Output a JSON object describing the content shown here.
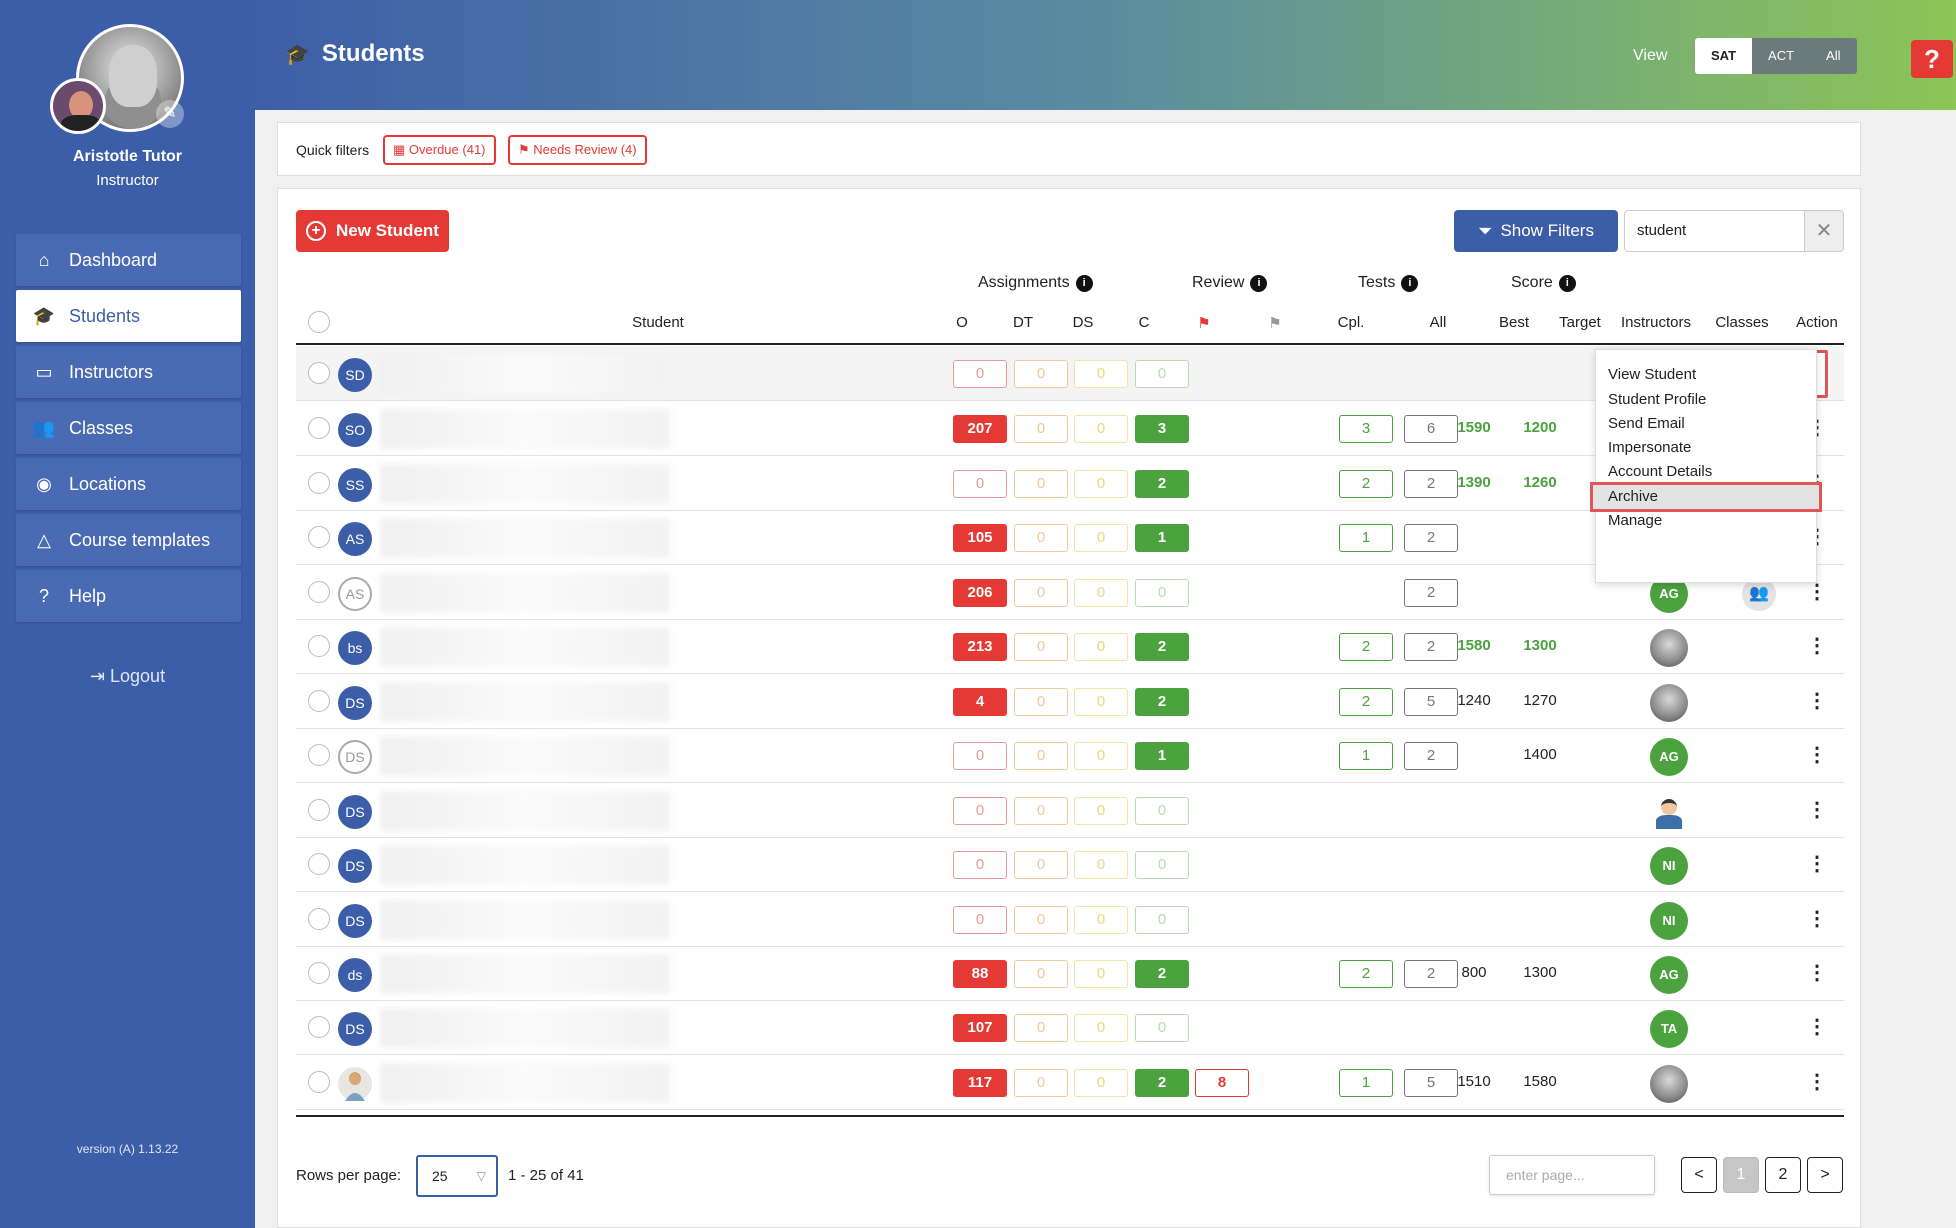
{
  "sidebar": {
    "user_name": "Aristotle Tutor",
    "user_role": "Instructor",
    "nav": [
      {
        "label": "Dashboard",
        "icon": "home-icon",
        "glyph": "⌂"
      },
      {
        "label": "Students",
        "icon": "graduation-cap-icon",
        "glyph": "🎓"
      },
      {
        "label": "Instructors",
        "icon": "chalkboard-icon",
        "glyph": "▭"
      },
      {
        "label": "Classes",
        "icon": "users-icon",
        "glyph": "👥"
      },
      {
        "label": "Locations",
        "icon": "map-pin-icon",
        "glyph": "◉"
      },
      {
        "label": "Course templates",
        "icon": "shapes-icon",
        "glyph": "△"
      },
      {
        "label": "Help",
        "icon": "question-circle-icon",
        "glyph": "?"
      }
    ],
    "active_index": 1,
    "logout_label": "Logout",
    "version": "version (A) 1.13.22"
  },
  "header": {
    "title": "Students",
    "view_label": "View",
    "view_options": [
      "SAT",
      "ACT",
      "All"
    ],
    "view_selected": "SAT",
    "help_label": "?"
  },
  "quick_filters": {
    "label": "Quick filters",
    "chips": [
      {
        "label": "Overdue (41)",
        "icon": "calendar-icon"
      },
      {
        "label": "Needs Review (4)",
        "icon": "flag-icon"
      }
    ]
  },
  "toolbar": {
    "new_student_label": "New Student",
    "show_filters_label": "Show Filters",
    "search_value": "student"
  },
  "table": {
    "group_headers": {
      "assignments": "Assignments",
      "review": "Review",
      "tests": "Tests",
      "score": "Score"
    },
    "columns": {
      "student": "Student",
      "o": "O",
      "dt": "DT",
      "ds": "DS",
      "c": "C",
      "cpl": "Cpl.",
      "all": "All",
      "best": "Best",
      "target": "Target",
      "instructors": "Instructors",
      "classes": "Classes",
      "action": "Action"
    },
    "rows": [
      {
        "initials": "SD",
        "avatar": "solid",
        "o": "0",
        "dt": "0",
        "ds": "0",
        "c": "0",
        "review": "",
        "cpl": "",
        "all": "",
        "best": "",
        "target": "",
        "best_green": false,
        "target_green": false,
        "instructor": "",
        "instructor_type": "",
        "classes": false
      },
      {
        "initials": "SO",
        "avatar": "solid",
        "o": "207",
        "dt": "0",
        "ds": "0",
        "c": "3",
        "review": "",
        "cpl": "3",
        "all": "6",
        "best": "1590",
        "target": "1200",
        "best_green": true,
        "target_green": true,
        "instructor": "",
        "instructor_type": "",
        "classes": false
      },
      {
        "initials": "SS",
        "avatar": "solid",
        "o": "0",
        "dt": "0",
        "ds": "0",
        "c": "2",
        "review": "",
        "cpl": "2",
        "all": "2",
        "best": "1390",
        "target": "1260",
        "best_green": true,
        "target_green": true,
        "instructor": "",
        "instructor_type": "",
        "classes": false
      },
      {
        "initials": "AS",
        "avatar": "solid",
        "o": "105",
        "dt": "0",
        "ds": "0",
        "c": "1",
        "review": "",
        "cpl": "1",
        "all": "2",
        "best": "",
        "target": "",
        "best_green": false,
        "target_green": false,
        "instructor": "",
        "instructor_type": "",
        "classes": false
      },
      {
        "initials": "AS",
        "avatar": "outline",
        "o": "206",
        "dt": "0",
        "ds": "0",
        "c": "0",
        "review": "",
        "cpl": "",
        "all": "2",
        "best": "",
        "target": "",
        "best_green": false,
        "target_green": false,
        "instructor": "AG",
        "instructor_type": "initials",
        "classes": true
      },
      {
        "initials": "bs",
        "avatar": "solid",
        "o": "213",
        "dt": "0",
        "ds": "0",
        "c": "2",
        "review": "",
        "cpl": "2",
        "all": "2",
        "best": "1580",
        "target": "1300",
        "best_green": true,
        "target_green": true,
        "instructor": "",
        "instructor_type": "photo",
        "classes": false
      },
      {
        "initials": "DS",
        "avatar": "solid",
        "o": "4",
        "dt": "0",
        "ds": "0",
        "c": "2",
        "review": "",
        "cpl": "2",
        "all": "5",
        "best": "1240",
        "target": "1270",
        "best_green": false,
        "target_green": false,
        "instructor": "",
        "instructor_type": "photo",
        "classes": false
      },
      {
        "initials": "DS",
        "avatar": "outline",
        "o": "0",
        "dt": "0",
        "ds": "0",
        "c": "1",
        "review": "",
        "cpl": "1",
        "all": "2",
        "best": "",
        "target": "1400",
        "best_green": false,
        "target_green": false,
        "instructor": "AG",
        "instructor_type": "initials",
        "classes": false
      },
      {
        "initials": "DS",
        "avatar": "solid",
        "o": "0",
        "dt": "0",
        "ds": "0",
        "c": "0",
        "review": "",
        "cpl": "",
        "all": "",
        "best": "",
        "target": "",
        "best_green": false,
        "target_green": false,
        "instructor": "",
        "instructor_type": "cartoon",
        "classes": false
      },
      {
        "initials": "DS",
        "avatar": "solid",
        "o": "0",
        "dt": "0",
        "ds": "0",
        "c": "0",
        "review": "",
        "cpl": "",
        "all": "",
        "best": "",
        "target": "",
        "best_green": false,
        "target_green": false,
        "instructor": "NI",
        "instructor_type": "initials",
        "classes": false
      },
      {
        "initials": "DS",
        "avatar": "solid",
        "o": "0",
        "dt": "0",
        "ds": "0",
        "c": "0",
        "review": "",
        "cpl": "",
        "all": "",
        "best": "",
        "target": "",
        "best_green": false,
        "target_green": false,
        "instructor": "NI",
        "instructor_type": "initials",
        "classes": false
      },
      {
        "initials": "ds",
        "avatar": "solid",
        "o": "88",
        "dt": "0",
        "ds": "0",
        "c": "2",
        "review": "",
        "cpl": "2",
        "all": "2",
        "best": "800",
        "target": "1300",
        "best_green": false,
        "target_green": false,
        "instructor": "AG",
        "instructor_type": "initials",
        "classes": false
      },
      {
        "initials": "DS",
        "avatar": "solid",
        "o": "107",
        "dt": "0",
        "ds": "0",
        "c": "0",
        "review": "",
        "cpl": "",
        "all": "",
        "best": "",
        "target": "",
        "best_green": false,
        "target_green": false,
        "instructor": "TA",
        "instructor_type": "initials",
        "classes": false
      },
      {
        "initials": "",
        "avatar": "photo",
        "o": "117",
        "dt": "0",
        "ds": "0",
        "c": "2",
        "review": "8",
        "cpl": "1",
        "all": "5",
        "best": "1510",
        "target": "1580",
        "best_green": false,
        "target_green": false,
        "instructor": "",
        "instructor_type": "photo",
        "classes": false
      }
    ]
  },
  "menu": {
    "items": [
      "View Student",
      "Student Profile",
      "Send Email",
      "Impersonate",
      "Account Details",
      "Archive",
      "Manage"
    ],
    "highlighted": "Archive"
  },
  "pagination": {
    "rows_per_page_label": "Rows per page:",
    "rows_per_page_value": "25",
    "range_text": "1 - 25 of 41",
    "enter_page_placeholder": "enter page...",
    "pages": [
      "1",
      "2"
    ],
    "current_page": "1"
  },
  "colors": {
    "primary": "#3c5ea8",
    "danger": "#e53935",
    "success": "#4ca23e"
  }
}
